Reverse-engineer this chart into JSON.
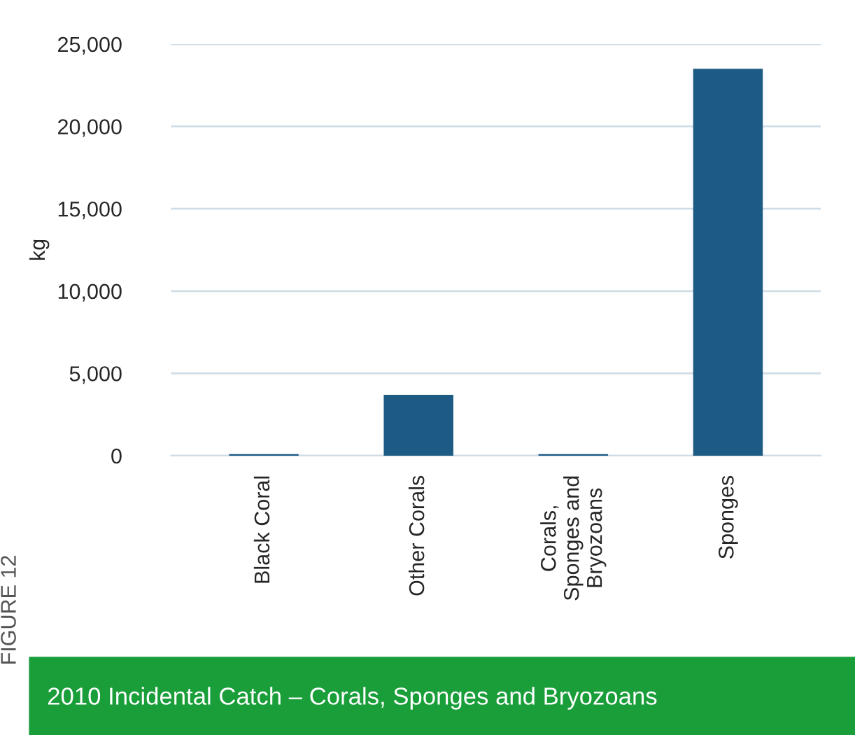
{
  "chart_data": {
    "type": "bar",
    "title": "2010 Incidental Catch – Corals, Sponges and Bryozoans",
    "ylabel": "kg",
    "categories": [
      "Black Coral",
      "Other Corals",
      "Corals,\nSponges and\nBryozoans",
      "Sponges"
    ],
    "values": [
      100,
      3700,
      100,
      23500
    ],
    "color": "#1d5b84",
    "ylim": [
      0,
      25000
    ],
    "yticks": [
      {
        "value": 0,
        "label": "0"
      },
      {
        "value": 5000,
        "label": "5,000"
      },
      {
        "value": 10000,
        "label": "10,000"
      },
      {
        "value": 15000,
        "label": "15,000"
      },
      {
        "value": 20000,
        "label": "20,000"
      },
      {
        "value": 25000,
        "label": "25,000"
      }
    ],
    "grid": "y",
    "annotations": [
      "FIGURE 12"
    ]
  }
}
